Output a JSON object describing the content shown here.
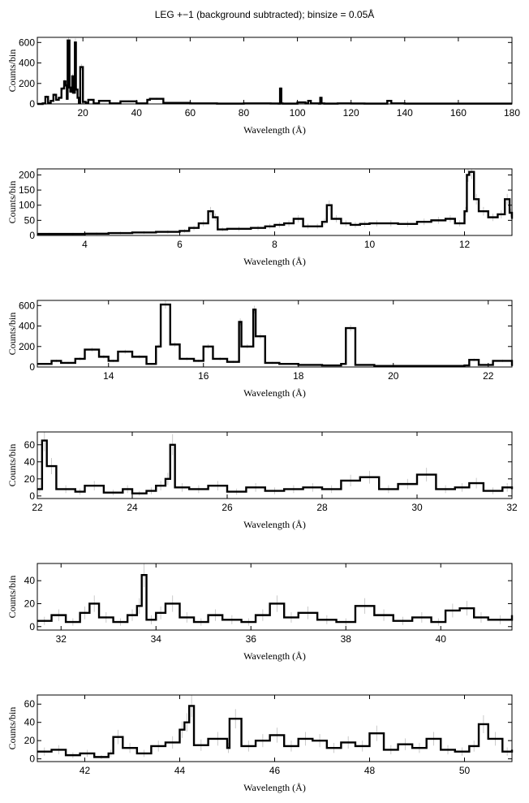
{
  "page": {
    "title": "LEG +−1 (background subtracted); binsize = 0.05Å"
  },
  "chart_data": [
    {
      "type": "line",
      "xlabel": "Wavelength (Å)",
      "ylabel": "Counts/bin",
      "xlim": [
        3,
        180
      ],
      "ylim": [
        0,
        650
      ],
      "xticks": [
        20,
        40,
        60,
        80,
        100,
        120,
        140,
        160,
        180
      ],
      "yticks": [
        0,
        200,
        400,
        600
      ],
      "x": [
        3,
        5,
        6,
        7,
        8,
        9,
        10,
        11,
        12,
        13,
        13.5,
        14,
        14.3,
        15,
        15.3,
        16,
        16.3,
        17,
        17.4,
        18,
        18.5,
        19,
        20,
        21,
        22,
        24,
        26,
        30,
        34,
        40,
        44,
        45,
        50,
        60,
        70,
        80,
        90,
        93,
        93.5,
        94,
        94.5,
        96,
        100,
        103,
        104,
        105,
        106,
        108,
        108.5,
        109,
        110,
        115,
        120,
        125,
        130,
        133,
        133.5,
        135,
        140,
        150,
        160,
        170,
        180
      ],
      "values": [
        0,
        5,
        70,
        10,
        30,
        90,
        40,
        60,
        150,
        220,
        180,
        50,
        620,
        160,
        120,
        270,
        110,
        600,
        140,
        60,
        10,
        360,
        20,
        10,
        40,
        5,
        30,
        5,
        25,
        5,
        40,
        50,
        10,
        5,
        3,
        5,
        4,
        3,
        150,
        5,
        3,
        3,
        15,
        5,
        30,
        5,
        5,
        3,
        60,
        5,
        3,
        5,
        4,
        3,
        3,
        3,
        30,
        5,
        3,
        3,
        3,
        3,
        3
      ]
    },
    {
      "type": "line",
      "xlabel": "Wavelength (Å)",
      "ylabel": "Counts/bin",
      "xlim": [
        3,
        13
      ],
      "ylim": [
        0,
        220
      ],
      "xticks": [
        4,
        6,
        8,
        10,
        12
      ],
      "yticks": [
        0,
        50,
        100,
        150,
        200
      ],
      "yticklabels": [
        "0",
        "50",
        "100",
        "150",
        "200"
      ],
      "x": [
        3,
        3.5,
        4,
        4.5,
        5,
        5.5,
        6,
        6.2,
        6.4,
        6.6,
        6.7,
        6.8,
        7.0,
        7.5,
        7.8,
        8.0,
        8.2,
        8.4,
        8.6,
        8.8,
        9.0,
        9.1,
        9.2,
        9.4,
        9.6,
        9.8,
        10.0,
        10.3,
        10.6,
        11.0,
        11.3,
        11.6,
        11.8,
        12.0,
        12.05,
        12.1,
        12.2,
        12.3,
        12.5,
        12.7,
        12.85,
        12.95,
        13.0
      ],
      "values": [
        5,
        5,
        6,
        8,
        10,
        12,
        15,
        25,
        40,
        80,
        60,
        20,
        22,
        25,
        30,
        35,
        40,
        55,
        30,
        30,
        45,
        100,
        55,
        40,
        35,
        38,
        40,
        40,
        38,
        45,
        50,
        55,
        40,
        80,
        200,
        210,
        120,
        80,
        60,
        70,
        120,
        75,
        55
      ]
    },
    {
      "type": "line",
      "xlabel": "Wavelength (Å)",
      "ylabel": "Counts/bin",
      "xlim": [
        12.5,
        22.5
      ],
      "ylim": [
        0,
        650
      ],
      "xticks": [
        14,
        16,
        18,
        20,
        22
      ],
      "yticks": [
        0,
        200,
        400,
        600
      ],
      "x": [
        12.5,
        12.8,
        13.0,
        13.3,
        13.5,
        13.8,
        14.0,
        14.2,
        14.5,
        14.8,
        15.0,
        15.1,
        15.3,
        15.5,
        15.8,
        16.0,
        16.2,
        16.5,
        16.75,
        16.8,
        17.05,
        17.1,
        17.3,
        17.6,
        18.0,
        18.5,
        18.9,
        19.0,
        19.2,
        19.6,
        20.0,
        20.5,
        21.0,
        21.5,
        21.6,
        21.8,
        22.1,
        22.5
      ],
      "values": [
        30,
        60,
        40,
        80,
        170,
        100,
        60,
        150,
        100,
        30,
        200,
        610,
        220,
        80,
        60,
        200,
        80,
        50,
        440,
        200,
        560,
        300,
        40,
        30,
        20,
        15,
        30,
        380,
        20,
        10,
        10,
        10,
        10,
        15,
        70,
        20,
        60,
        10
      ]
    },
    {
      "type": "line",
      "xlabel": "Wavelength (Å)",
      "ylabel": "Counts/bin",
      "xlim": [
        22,
        32
      ],
      "ylim": [
        -3,
        75
      ],
      "xticks": [
        22,
        24,
        26,
        28,
        30,
        32
      ],
      "yticks": [
        0,
        20,
        40,
        60
      ],
      "x": [
        22.0,
        22.1,
        22.2,
        22.4,
        22.8,
        23.0,
        23.4,
        23.8,
        24.0,
        24.3,
        24.5,
        24.7,
        24.8,
        24.9,
        25.2,
        25.6,
        26.0,
        26.4,
        26.8,
        27.2,
        27.6,
        28.0,
        28.4,
        28.8,
        29.2,
        29.6,
        30.0,
        30.4,
        30.8,
        31.1,
        31.4,
        31.8,
        32.0
      ],
      "values": [
        8,
        65,
        35,
        8,
        5,
        12,
        4,
        8,
        3,
        6,
        12,
        20,
        60,
        10,
        8,
        12,
        5,
        10,
        6,
        8,
        10,
        8,
        18,
        22,
        8,
        14,
        25,
        8,
        10,
        15,
        6,
        10,
        8
      ]
    },
    {
      "type": "line",
      "xlabel": "Wavelength (Å)",
      "ylabel": "Counts/bin",
      "xlim": [
        31.5,
        41.5
      ],
      "ylim": [
        -3,
        55
      ],
      "xticks": [
        32,
        34,
        36,
        38,
        40
      ],
      "yticks": [
        0,
        20,
        40
      ],
      "x": [
        31.5,
        31.8,
        32.1,
        32.4,
        32.6,
        32.8,
        33.1,
        33.4,
        33.6,
        33.7,
        33.8,
        34.0,
        34.2,
        34.5,
        34.8,
        35.1,
        35.4,
        35.8,
        36.1,
        36.4,
        36.7,
        37.0,
        37.4,
        37.8,
        38.2,
        38.6,
        39.0,
        39.4,
        39.8,
        40.1,
        40.4,
        40.7,
        41.0,
        41.5
      ],
      "values": [
        5,
        10,
        4,
        12,
        20,
        8,
        4,
        10,
        18,
        45,
        6,
        12,
        20,
        8,
        4,
        10,
        6,
        4,
        10,
        20,
        8,
        12,
        6,
        4,
        18,
        10,
        5,
        8,
        4,
        14,
        16,
        8,
        6,
        10
      ]
    },
    {
      "type": "line",
      "xlabel": "Wavelength (Å)",
      "ylabel": "Counts/bin",
      "xlim": [
        41,
        51
      ],
      "ylim": [
        -3,
        70
      ],
      "xticks": [
        42,
        44,
        46,
        48,
        50
      ],
      "yticks": [
        0,
        20,
        40,
        60
      ],
      "x": [
        41.0,
        41.3,
        41.6,
        41.9,
        42.2,
        42.5,
        42.6,
        42.8,
        43.1,
        43.4,
        43.7,
        44.0,
        44.1,
        44.2,
        44.3,
        44.6,
        45.0,
        45.05,
        45.3,
        45.6,
        45.9,
        46.2,
        46.5,
        46.8,
        47.1,
        47.4,
        47.7,
        48.0,
        48.3,
        48.6,
        48.9,
        49.2,
        49.5,
        49.8,
        50.1,
        50.3,
        50.5,
        50.8,
        51.0
      ],
      "values": [
        8,
        10,
        4,
        6,
        2,
        6,
        24,
        12,
        6,
        14,
        18,
        32,
        40,
        58,
        15,
        22,
        12,
        44,
        14,
        20,
        26,
        14,
        22,
        20,
        12,
        18,
        14,
        28,
        10,
        16,
        12,
        22,
        10,
        8,
        14,
        38,
        22,
        8,
        10
      ]
    }
  ]
}
